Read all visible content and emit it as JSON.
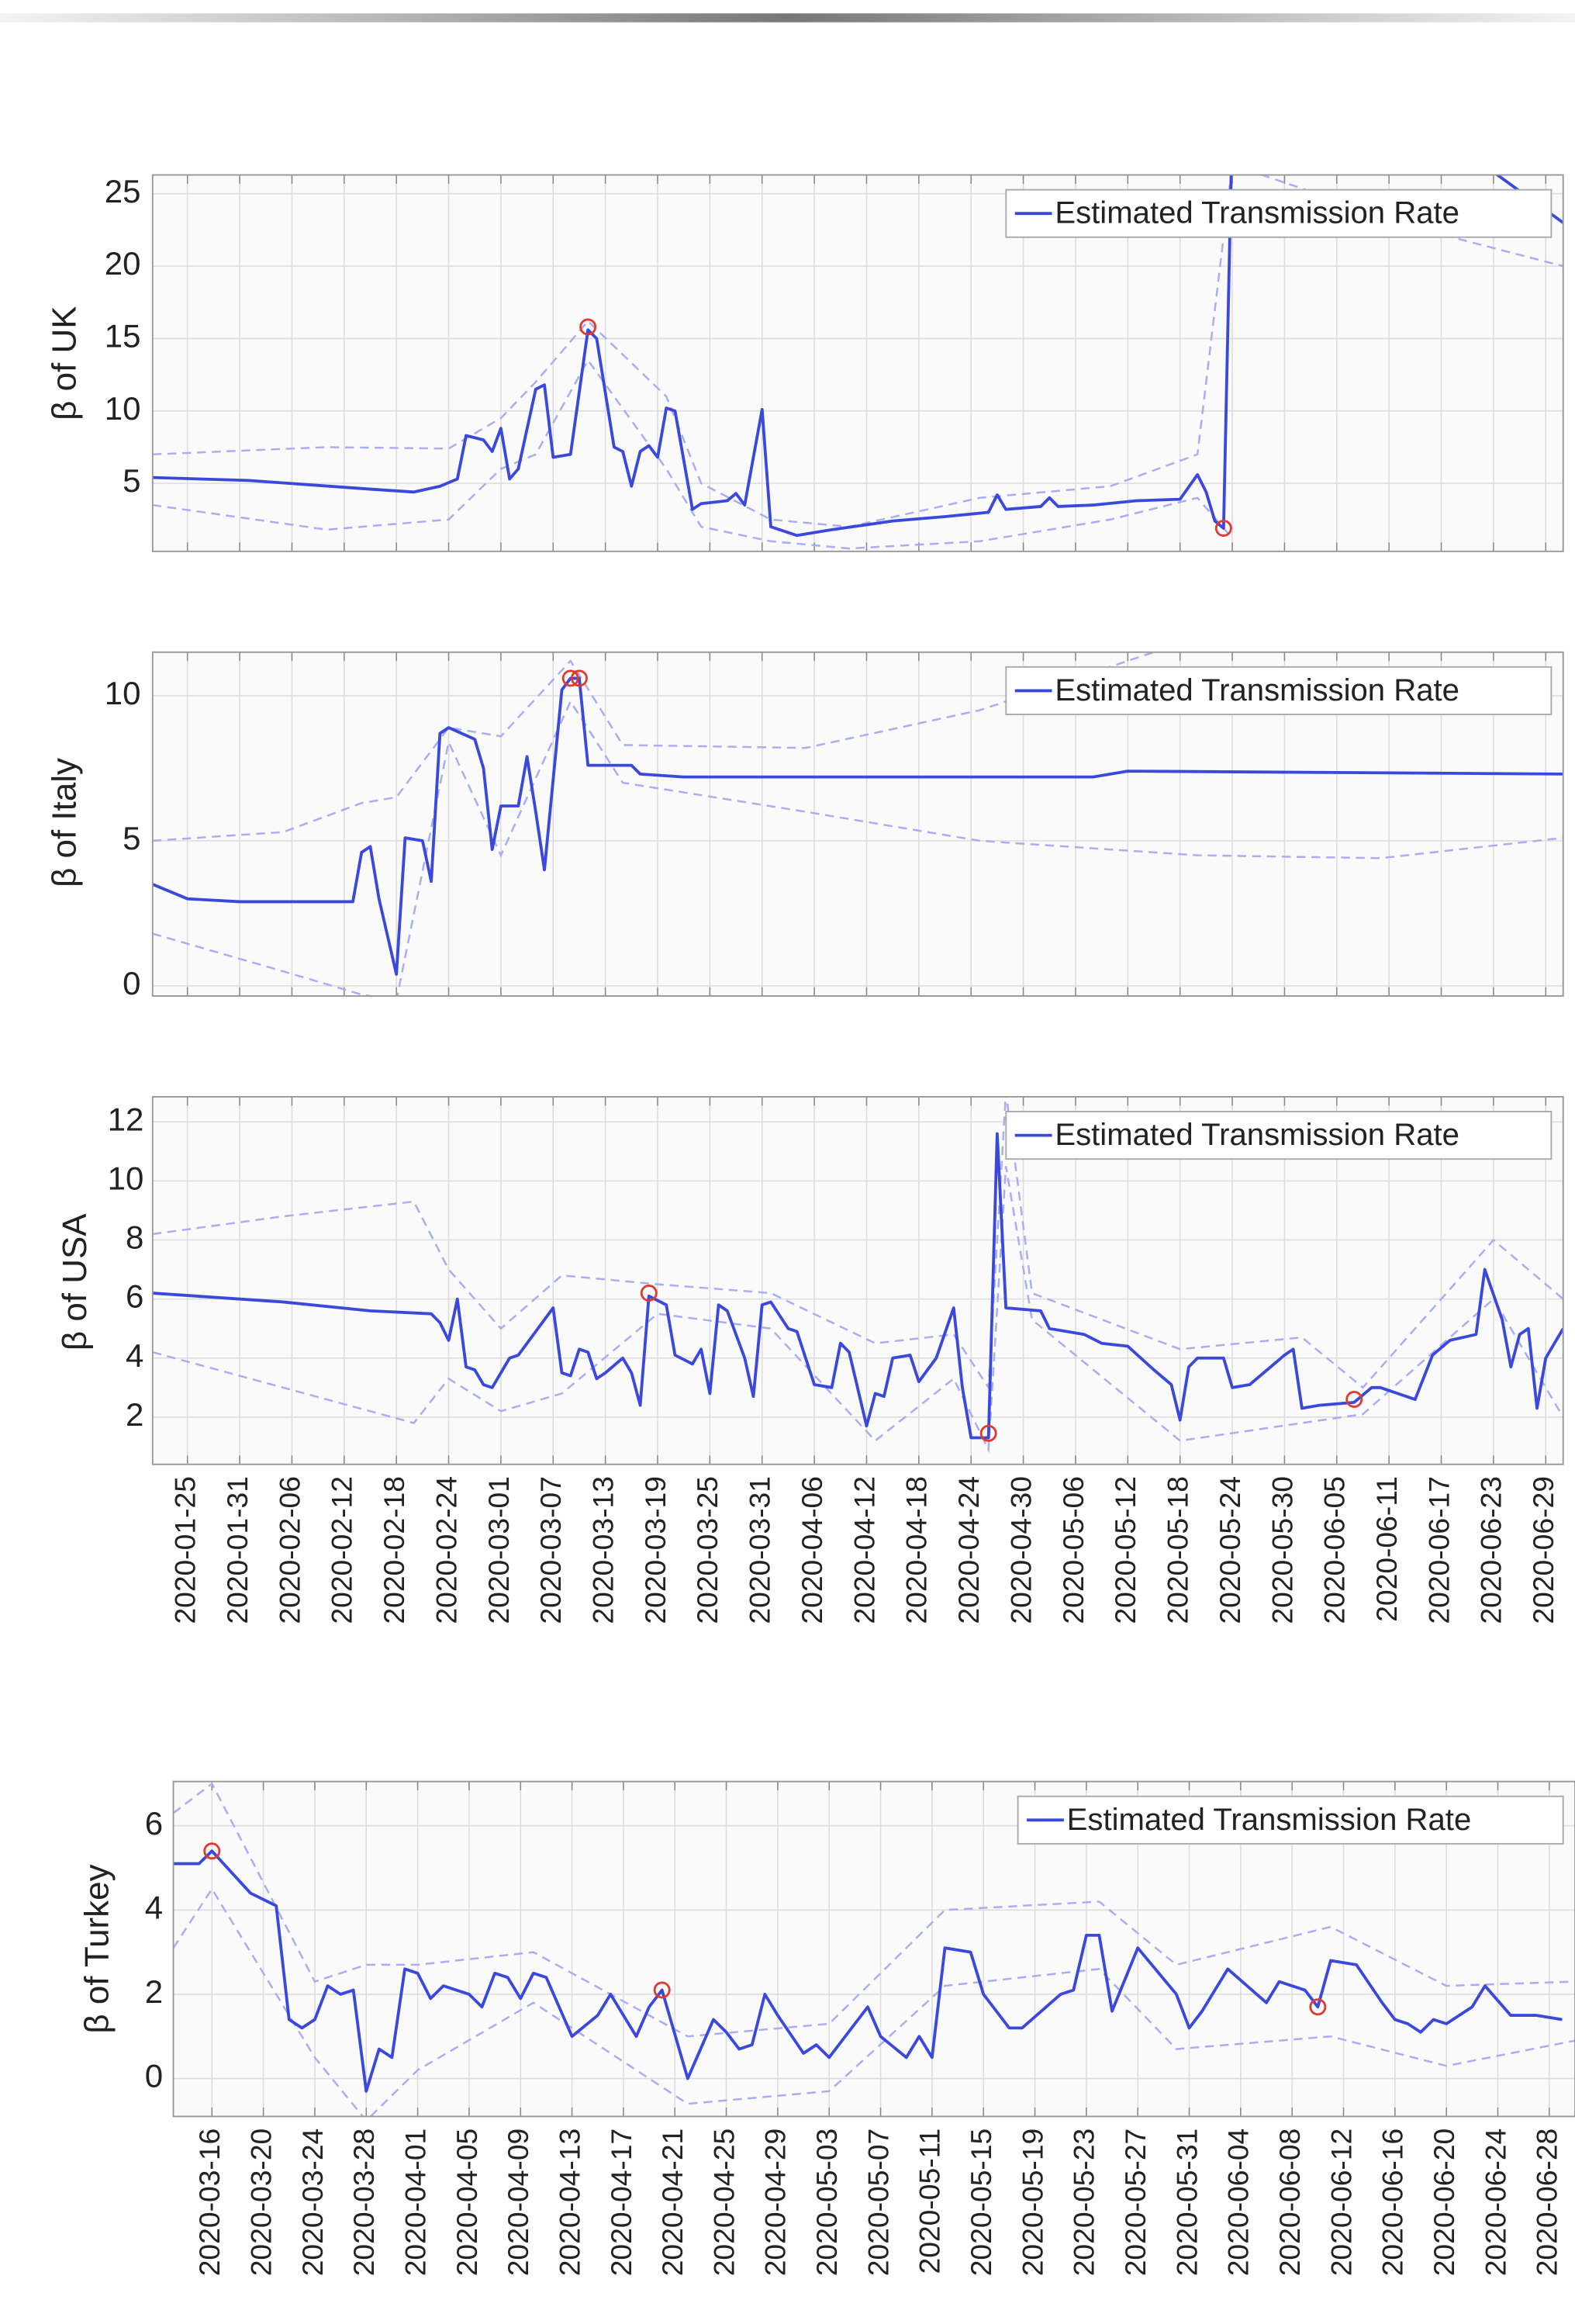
{
  "chart_data": [
    {
      "type": "line",
      "ylabel": "β of UK",
      "xlim": [
        "2020-01-21",
        "2020-07-01"
      ],
      "ylim": [
        0.3,
        26.3
      ],
      "yticks": [
        5,
        10,
        15,
        20,
        25
      ],
      "grid": true,
      "legend": "upper right",
      "x": [
        "2020-01-21",
        "2020-02-01",
        "2020-02-15",
        "2020-02-20",
        "2020-02-23",
        "2020-02-25",
        "2020-02-26",
        "2020-02-28",
        "2020-02-29",
        "2020-03-01",
        "2020-03-02",
        "2020-03-03",
        "2020-03-05",
        "2020-03-06",
        "2020-03-07",
        "2020-03-09",
        "2020-03-11",
        "2020-03-12",
        "2020-03-14",
        "2020-03-15",
        "2020-03-16",
        "2020-03-17",
        "2020-03-18",
        "2020-03-19",
        "2020-03-20",
        "2020-03-21",
        "2020-03-23",
        "2020-03-24",
        "2020-03-27",
        "2020-03-28",
        "2020-03-29",
        "2020-03-31",
        "2020-04-01",
        "2020-04-04",
        "2020-04-08",
        "2020-04-15",
        "2020-04-21",
        "2020-04-26",
        "2020-04-27",
        "2020-04-28",
        "2020-05-02",
        "2020-05-03",
        "2020-05-04",
        "2020-05-08",
        "2020-05-13",
        "2020-05-18",
        "2020-05-20",
        "2020-05-21",
        "2020-05-22",
        "2020-05-23",
        "2020-05-24",
        "2020-06-15",
        "2020-07-01"
      ],
      "series": [
        {
          "name": "Estimated Transmission Rate",
          "color": "#3a48de",
          "values": [
            5.4,
            5.2,
            4.6,
            4.4,
            4.8,
            5.3,
            8.3,
            8.0,
            7.2,
            8.8,
            5.3,
            6.0,
            11.5,
            11.8,
            6.8,
            7.0,
            15.6,
            15.0,
            7.5,
            7.2,
            4.8,
            7.2,
            7.6,
            6.8,
            10.2,
            10.0,
            3.2,
            3.6,
            3.8,
            4.3,
            3.5,
            10.1,
            2.0,
            1.4,
            1.8,
            2.4,
            2.7,
            3.0,
            4.2,
            3.2,
            3.4,
            4.0,
            3.4,
            3.5,
            3.8,
            3.9,
            5.6,
            4.4,
            2.4,
            1.9,
            30,
            30,
            23
          ]
        }
      ],
      "bounds": {
        "color": "#a7aef2",
        "x": [
          "2020-01-21",
          "2020-02-10",
          "2020-02-24",
          "2020-03-01",
          "2020-03-05",
          "2020-03-11",
          "2020-03-20",
          "2020-03-24",
          "2020-04-01",
          "2020-04-10",
          "2020-04-25",
          "2020-05-10",
          "2020-05-20",
          "2020-05-24",
          "2020-06-15",
          "2020-07-01"
        ],
        "upper": [
          7.0,
          7.5,
          7.4,
          9.5,
          12.0,
          16.2,
          11.0,
          5.0,
          2.5,
          2.0,
          4.0,
          4.8,
          7.0,
          27.0,
          22.5,
          20.0
        ],
        "lower": [
          3.5,
          1.8,
          2.5,
          6.0,
          7.0,
          13.5,
          6.0,
          2.0,
          1.0,
          0.5,
          1.0,
          2.5,
          4.0,
          1.2,
          null,
          null
        ]
      },
      "markers": {
        "color": "#e23b2e",
        "x": [
          "2020-03-11",
          "2020-05-23"
        ],
        "values": [
          15.8,
          1.9
        ]
      }
    },
    {
      "type": "line",
      "ylabel": "β of Italy",
      "xlim": [
        "2020-01-21",
        "2020-07-01"
      ],
      "ylim": [
        -0.35,
        11.5
      ],
      "yticks": [
        0,
        5,
        10
      ],
      "grid": true,
      "legend": "upper right",
      "x": [
        "2020-01-21",
        "2020-01-25",
        "2020-01-31",
        "2020-02-13",
        "2020-02-14",
        "2020-02-15",
        "2020-02-16",
        "2020-02-18",
        "2020-02-19",
        "2020-02-21",
        "2020-02-22",
        "2020-02-23",
        "2020-02-24",
        "2020-02-27",
        "2020-02-28",
        "2020-02-29",
        "2020-03-01",
        "2020-03-03",
        "2020-03-04",
        "2020-03-05",
        "2020-03-06",
        "2020-03-08",
        "2020-03-09",
        "2020-03-10",
        "2020-03-11",
        "2020-03-13",
        "2020-03-16",
        "2020-03-17",
        "2020-03-22",
        "2020-05-08",
        "2020-05-12",
        "2020-07-01"
      ],
      "series": [
        {
          "name": "Estimated Transmission Rate",
          "color": "#3a48de",
          "values": [
            3.5,
            3.0,
            2.9,
            2.9,
            4.6,
            4.8,
            3.0,
            0.4,
            5.1,
            5.0,
            3.6,
            8.7,
            8.9,
            8.5,
            7.5,
            4.7,
            6.2,
            6.2,
            7.9,
            6.0,
            4.0,
            10.2,
            10.6,
            10.6,
            7.6,
            7.6,
            7.6,
            7.3,
            7.2,
            7.2,
            7.4,
            7.3
          ]
        }
      ],
      "bounds": {
        "color": "#a7aef2",
        "x": [
          "2020-01-21",
          "2020-02-05",
          "2020-02-14",
          "2020-02-18",
          "2020-02-24",
          "2020-03-01",
          "2020-03-09",
          "2020-03-15",
          "2020-04-05",
          "2020-04-25",
          "2020-05-20",
          "2020-06-10",
          "2020-07-01"
        ],
        "upper": [
          5.0,
          5.3,
          6.3,
          6.5,
          8.9,
          8.6,
          11.2,
          8.3,
          8.2,
          9.5,
          12.0,
          12.0,
          12.0
        ],
        "lower": [
          1.8,
          0.5,
          -0.3,
          -0.5,
          8.4,
          4.5,
          9.8,
          7.0,
          6.0,
          5.0,
          4.5,
          4.4,
          5.1
        ]
      },
      "markers": {
        "color": "#e23b2e",
        "x": [
          "2020-03-09",
          "2020-03-10"
        ],
        "values": [
          10.6,
          10.6
        ]
      }
    },
    {
      "type": "line",
      "ylabel": "β of USA",
      "xlim": [
        "2020-01-21",
        "2020-07-01"
      ],
      "ylim": [
        0.4,
        12.85
      ],
      "yticks": [
        2,
        4,
        6,
        8,
        10,
        12
      ],
      "grid": true,
      "legend": "upper right",
      "xticks": [
        "2020-01-25",
        "2020-01-31",
        "2020-02-06",
        "2020-02-12",
        "2020-02-18",
        "2020-02-24",
        "2020-03-01",
        "2020-03-07",
        "2020-03-13",
        "2020-03-19",
        "2020-03-25",
        "2020-03-31",
        "2020-04-06",
        "2020-04-12",
        "2020-04-18",
        "2020-04-24",
        "2020-04-30",
        "2020-05-06",
        "2020-05-12",
        "2020-05-18",
        "2020-05-24",
        "2020-05-30",
        "2020-06-05",
        "2020-06-11",
        "2020-06-17",
        "2020-06-23",
        "2020-06-29"
      ],
      "x": [
        "2020-01-21",
        "2020-02-05",
        "2020-02-15",
        "2020-02-22",
        "2020-02-23",
        "2020-02-24",
        "2020-02-25",
        "2020-02-26",
        "2020-02-27",
        "2020-02-28",
        "2020-02-29",
        "2020-03-02",
        "2020-03-03",
        "2020-03-07",
        "2020-03-08",
        "2020-03-09",
        "2020-03-10",
        "2020-03-11",
        "2020-03-12",
        "2020-03-13",
        "2020-03-15",
        "2020-03-16",
        "2020-03-17",
        "2020-03-18",
        "2020-03-20",
        "2020-03-21",
        "2020-03-23",
        "2020-03-24",
        "2020-03-25",
        "2020-03-26",
        "2020-03-27",
        "2020-03-29",
        "2020-03-30",
        "2020-03-31",
        "2020-04-01",
        "2020-04-03",
        "2020-04-04",
        "2020-04-06",
        "2020-04-08",
        "2020-04-09",
        "2020-04-10",
        "2020-04-12",
        "2020-04-13",
        "2020-04-14",
        "2020-04-15",
        "2020-04-17",
        "2020-04-18",
        "2020-04-20",
        "2020-04-22",
        "2020-04-23",
        "2020-04-24",
        "2020-04-26",
        "2020-04-27",
        "2020-04-28",
        "2020-05-02",
        "2020-05-03",
        "2020-05-07",
        "2020-05-09",
        "2020-05-12",
        "2020-05-15",
        "2020-05-17",
        "2020-05-18",
        "2020-05-19",
        "2020-05-20",
        "2020-05-23",
        "2020-05-24",
        "2020-05-26",
        "2020-05-28",
        "2020-05-30",
        "2020-05-31",
        "2020-06-01",
        "2020-06-03",
        "2020-06-07",
        "2020-06-09",
        "2020-06-10",
        "2020-06-14",
        "2020-06-16",
        "2020-06-18",
        "2020-06-21",
        "2020-06-22",
        "2020-06-24",
        "2020-06-25",
        "2020-06-26",
        "2020-06-27",
        "2020-06-28",
        "2020-06-29",
        "2020-07-01"
      ],
      "series": [
        {
          "name": "Estimated Transmission Rate",
          "color": "#3a48de",
          "values": [
            6.2,
            5.9,
            5.6,
            5.5,
            5.2,
            4.6,
            6.0,
            3.7,
            3.6,
            3.1,
            3.0,
            4.0,
            4.1,
            5.7,
            3.5,
            3.4,
            4.3,
            4.2,
            3.3,
            3.5,
            4.0,
            3.5,
            2.4,
            6.1,
            5.8,
            4.1,
            3.8,
            4.3,
            2.8,
            5.8,
            5.6,
            4.0,
            2.7,
            5.8,
            5.9,
            5.0,
            4.9,
            3.1,
            3.0,
            4.5,
            4.2,
            1.7,
            2.8,
            2.7,
            4.0,
            4.1,
            3.2,
            4.0,
            5.7,
            3.0,
            1.3,
            1.3,
            11.6,
            5.7,
            5.6,
            5.0,
            4.8,
            4.5,
            4.4,
            3.6,
            3.1,
            1.9,
            3.7,
            4.0,
            4.0,
            3.0,
            3.1,
            3.6,
            4.1,
            4.3,
            2.3,
            2.4,
            2.5,
            3.0,
            3.0,
            2.6,
            4.1,
            4.6,
            4.8,
            7.0,
            5.3,
            3.7,
            4.8,
            5.0,
            2.3,
            4.0,
            5.0
          ]
        }
      ],
      "bounds": {
        "color": "#a7aef2",
        "x": [
          "2020-01-21",
          "2020-02-05",
          "2020-02-20",
          "2020-02-24",
          "2020-03-01",
          "2020-03-08",
          "2020-03-19",
          "2020-04-01",
          "2020-04-13",
          "2020-04-22",
          "2020-04-26",
          "2020-04-28",
          "2020-05-01",
          "2020-05-18",
          "2020-06-01",
          "2020-06-08",
          "2020-06-23",
          "2020-07-01"
        ],
        "upper": [
          8.2,
          8.8,
          9.3,
          7.0,
          5.0,
          6.8,
          6.5,
          6.2,
          4.5,
          4.8,
          3.0,
          13.0,
          6.2,
          4.3,
          4.7,
          3.0,
          8.0,
          6.0
        ],
        "lower": [
          4.2,
          3.0,
          1.8,
          3.3,
          2.2,
          2.8,
          5.5,
          5.0,
          1.2,
          3.3,
          0.9,
          10.5,
          5.3,
          1.2,
          1.8,
          2.1,
          6.0,
          2.0
        ]
      },
      "markers": {
        "color": "#e23b2e",
        "x": [
          "2020-03-18",
          "2020-04-26",
          "2020-06-07"
        ],
        "values": [
          6.2,
          1.45,
          2.6
        ]
      }
    },
    {
      "type": "line",
      "ylabel": "β of Turkey",
      "xlim": [
        "2020-03-13",
        "2020-06-30"
      ],
      "ylim": [
        -0.9,
        7.05
      ],
      "yticks": [
        0,
        2,
        4,
        6
      ],
      "grid": true,
      "legend": "upper right",
      "xticks": [
        "2020-03-16",
        "2020-03-20",
        "2020-03-24",
        "2020-03-28",
        "2020-04-01",
        "2020-04-05",
        "2020-04-09",
        "2020-04-13",
        "2020-04-17",
        "2020-04-21",
        "2020-04-25",
        "2020-04-29",
        "2020-05-03",
        "2020-05-07",
        "2020-05-11",
        "2020-05-15",
        "2020-05-19",
        "2020-05-23",
        "2020-05-27",
        "2020-05-31",
        "2020-06-04",
        "2020-06-08",
        "2020-06-12",
        "2020-06-16",
        "2020-06-20",
        "2020-06-24",
        "2020-06-28"
      ],
      "x": [
        "2020-03-13",
        "2020-03-15",
        "2020-03-16",
        "2020-03-19",
        "2020-03-21",
        "2020-03-22",
        "2020-03-23",
        "2020-03-24",
        "2020-03-25",
        "2020-03-26",
        "2020-03-27",
        "2020-03-28",
        "2020-03-29",
        "2020-03-30",
        "2020-03-31",
        "2020-04-01",
        "2020-04-02",
        "2020-04-03",
        "2020-04-05",
        "2020-04-06",
        "2020-04-07",
        "2020-04-08",
        "2020-04-09",
        "2020-04-10",
        "2020-04-11",
        "2020-04-13",
        "2020-04-15",
        "2020-04-16",
        "2020-04-18",
        "2020-04-19",
        "2020-04-20",
        "2020-04-22",
        "2020-04-24",
        "2020-04-25",
        "2020-04-26",
        "2020-04-27",
        "2020-04-28",
        "2020-04-29",
        "2020-05-01",
        "2020-05-02",
        "2020-05-03",
        "2020-05-06",
        "2020-05-07",
        "2020-05-09",
        "2020-05-10",
        "2020-05-11",
        "2020-05-12",
        "2020-05-14",
        "2020-05-15",
        "2020-05-17",
        "2020-05-18",
        "2020-05-21",
        "2020-05-22",
        "2020-05-23",
        "2020-05-24",
        "2020-05-25",
        "2020-05-27",
        "2020-05-30",
        "2020-05-31",
        "2020-06-01",
        "2020-06-03",
        "2020-06-06",
        "2020-06-07",
        "2020-06-09",
        "2020-06-10",
        "2020-06-11",
        "2020-06-13",
        "2020-06-15",
        "2020-06-16",
        "2020-06-17",
        "2020-06-18",
        "2020-06-19",
        "2020-06-20",
        "2020-06-22",
        "2020-06-23",
        "2020-06-25",
        "2020-06-27",
        "2020-06-29"
      ],
      "series": [
        {
          "name": "Estimated Transmission Rate",
          "color": "#3a48de",
          "values": [
            5.1,
            5.1,
            5.4,
            4.4,
            4.1,
            1.4,
            1.2,
            1.4,
            2.2,
            2.0,
            2.1,
            -0.3,
            0.7,
            0.5,
            2.6,
            2.5,
            1.9,
            2.2,
            2.0,
            1.7,
            2.5,
            2.4,
            1.9,
            2.5,
            2.4,
            1.0,
            1.5,
            2.0,
            1.0,
            1.7,
            2.1,
            0.0,
            1.4,
            1.1,
            0.7,
            0.8,
            2.0,
            1.5,
            0.6,
            0.8,
            0.5,
            1.7,
            1.0,
            0.5,
            1.0,
            0.5,
            3.1,
            3.0,
            2.0,
            1.2,
            1.2,
            2.0,
            2.1,
            3.4,
            3.4,
            1.6,
            3.1,
            2.0,
            1.2,
            1.6,
            2.6,
            1.8,
            2.3,
            2.1,
            1.7,
            2.8,
            2.7,
            1.8,
            1.4,
            1.3,
            1.1,
            1.4,
            1.3,
            1.7,
            2.2,
            1.5,
            1.5,
            1.4
          ]
        }
      ],
      "bounds": {
        "color": "#a7aef2",
        "x": [
          "2020-03-13",
          "2020-03-16",
          "2020-03-24",
          "2020-03-28",
          "2020-04-01",
          "2020-04-10",
          "2020-04-22",
          "2020-05-03",
          "2020-05-12",
          "2020-05-24",
          "2020-05-30",
          "2020-06-11",
          "2020-06-20",
          "2020-06-30"
        ],
        "upper": [
          6.3,
          7.0,
          2.3,
          2.7,
          2.7,
          3.0,
          1.0,
          1.3,
          4.0,
          4.2,
          2.7,
          3.6,
          2.2,
          2.3
        ],
        "lower": [
          3.1,
          4.5,
          0.5,
          -1.0,
          0.2,
          1.8,
          -0.6,
          -0.3,
          2.2,
          2.6,
          0.7,
          1.0,
          0.3,
          0.9
        ]
      },
      "markers": {
        "color": "#e23b2e",
        "x": [
          "2020-03-16",
          "2020-04-20",
          "2020-06-10"
        ],
        "values": [
          5.4,
          2.1,
          1.7
        ]
      }
    }
  ]
}
